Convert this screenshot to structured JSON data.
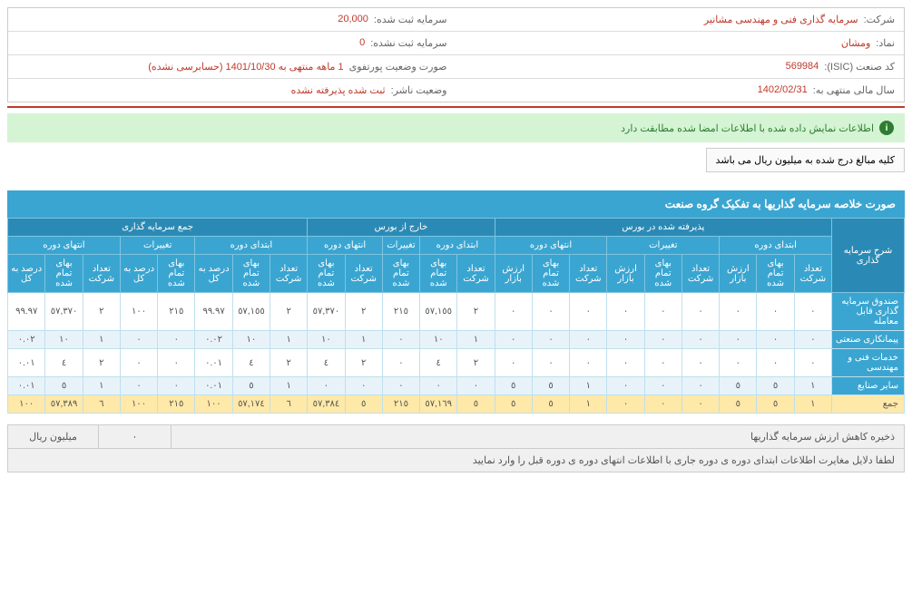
{
  "header": {
    "rows": [
      [
        {
          "label": "شرکت:",
          "value": "سرمایه گذاری فنی و مهندسی مشانیر"
        },
        {
          "label": "سرمایه ثبت شده:",
          "value": "20,000"
        }
      ],
      [
        {
          "label": "نماد:",
          "value": "ومشان"
        },
        {
          "label": "سرمایه ثبت نشده:",
          "value": "0"
        }
      ],
      [
        {
          "label": "کد صنعت (ISIC):",
          "value": "569984"
        },
        {
          "label": "صورت وضعیت پورتفوی",
          "value": "1 ماهه منتهی به 1401/10/30 (حسابرسی نشده)"
        }
      ],
      [
        {
          "label": "سال مالی منتهی به:",
          "value": "1402/02/31"
        },
        {
          "label": "وضعیت ناشر:",
          "value": "ثبت شده پذیرفته نشده"
        }
      ]
    ]
  },
  "banner": "اطلاعات نمایش داده شده با اطلاعات امضا شده مطابقت دارد",
  "note": "کلیه مبالغ درج شده به میلیون ریال می باشد",
  "section_title": "صورت خلاصه سرمایه گذاریها به تفکیک گروه صنعت",
  "groups": {
    "desc": "شرح سرمایه گذاری",
    "bourse": "پذیرفته شده در بورس",
    "off": "خارج از بورس",
    "total": "جمع سرمایه گذاری"
  },
  "sub": {
    "start": "ابتدای دوره",
    "change": "تغییرات",
    "end": "انتهای دوره"
  },
  "cols": {
    "count": "تعداد شرکت",
    "cost": "بهای تمام شده",
    "market": "ارزش بازار",
    "pct": "درصد به کل"
  },
  "rows": [
    {
      "label": "صندوق سرمایه گذاری قابل معامله",
      "alt": false,
      "c": [
        "٠",
        "٠",
        "٠",
        "٠",
        "٠",
        "٠",
        "٠",
        "٠",
        "٠",
        "٢",
        "٥٧,١٥٥",
        "٢١٥",
        "٢",
        "٥٧,٣٧٠",
        "٢",
        "٥٧,١٥٥",
        "٩٩.٩٧",
        "٢١٥",
        "١٠٠",
        "٢",
        "٥٧,٣٧٠",
        "٩٩.٩٧"
      ]
    },
    {
      "label": "پیمانکاری صنعتی",
      "alt": true,
      "c": [
        "٠",
        "٠",
        "٠",
        "٠",
        "٠",
        "٠",
        "٠",
        "٠",
        "٠",
        "١",
        "١٠",
        "٠",
        "١",
        "١٠",
        "١",
        "١٠",
        "٠.٠٢",
        "٠",
        "٠",
        "١",
        "١٠",
        "٠.٠٢"
      ]
    },
    {
      "label": "خدمات فنی و مهندسی",
      "alt": false,
      "c": [
        "٠",
        "٠",
        "٠",
        "٠",
        "٠",
        "٠",
        "٠",
        "٠",
        "٠",
        "٢",
        "٤",
        "٠",
        "٢",
        "٤",
        "٢",
        "٤",
        "٠.٠١",
        "٠",
        "٠",
        "٢",
        "٤",
        "٠.٠١"
      ]
    },
    {
      "label": "سایر صنایع",
      "alt": true,
      "c": [
        "١",
        "٥",
        "٥",
        "٠",
        "٠",
        "٠",
        "١",
        "٥",
        "٥",
        "٠",
        "٠",
        "٠",
        "٠",
        "٠",
        "١",
        "٥",
        "٠.٠١",
        "٠",
        "٠",
        "١",
        "٥",
        "٠.٠١"
      ]
    },
    {
      "label": "جمع",
      "total": true,
      "c": [
        "١",
        "٥",
        "٥",
        "٠",
        "٠",
        "٠",
        "١",
        "٥",
        "٥",
        "٥",
        "٥٧,١٦٩",
        "٢١٥",
        "٥",
        "٥٧,٣٨٤",
        "٦",
        "٥٧,١٧٤",
        "١٠٠",
        "٢١٥",
        "١٠٠",
        "٦",
        "٥٧,٣٨٩",
        "١٠٠"
      ]
    }
  ],
  "footer": {
    "r1_label": "ذخیره کاهش ارزش سرمایه گذاریها",
    "r1_val": "٠",
    "r1_unit": "میلیون ریال",
    "r2": "لطفا دلایل مغایرت اطلاعات ابتدای دوره ی دوره جاری با اطلاعات انتهای دوره ی دوره قبل را وارد نمایید"
  }
}
